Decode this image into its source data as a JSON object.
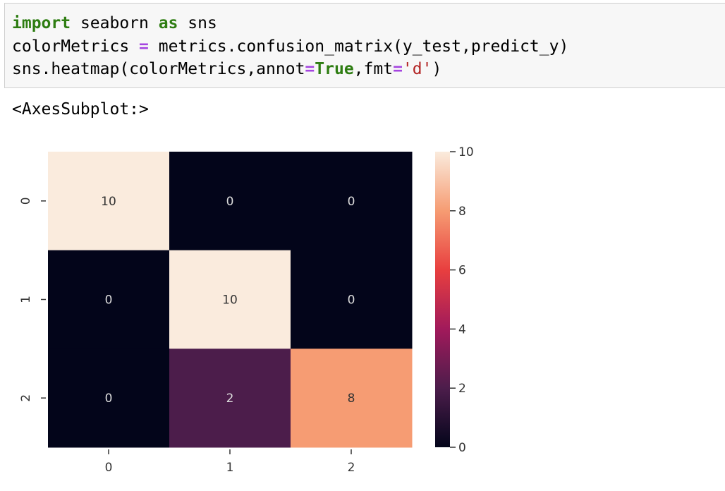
{
  "code_cell": {
    "lines": [
      [
        {
          "t": "import",
          "c": "kw"
        },
        {
          "t": " seaborn ",
          "c": ""
        },
        {
          "t": "as",
          "c": "kw"
        },
        {
          "t": " sns",
          "c": ""
        }
      ],
      [
        {
          "t": "colorMetrics ",
          "c": ""
        },
        {
          "t": "=",
          "c": "op"
        },
        {
          "t": " metrics.confusion_matrix(y_test,predict_y)",
          "c": ""
        }
      ],
      [
        {
          "t": "sns.heatmap(colorMetrics,annot",
          "c": ""
        },
        {
          "t": "=",
          "c": "op"
        },
        {
          "t": "True",
          "c": "kw"
        },
        {
          "t": ",fmt",
          "c": ""
        },
        {
          "t": "=",
          "c": "op"
        },
        {
          "t": "'d'",
          "c": "str"
        },
        {
          "t": ")",
          "c": ""
        }
      ]
    ]
  },
  "output": {
    "text": "<AxesSubplot:>"
  },
  "chart_data": {
    "type": "heatmap",
    "colormap": "rocket",
    "x_ticks": [
      "0",
      "1",
      "2"
    ],
    "y_ticks": [
      "0",
      "1",
      "2"
    ],
    "values": [
      [
        10,
        0,
        0
      ],
      [
        0,
        10,
        0
      ],
      [
        0,
        2,
        8
      ]
    ],
    "vmin": 0,
    "vmax": 10,
    "colorbar_ticks": [
      "0",
      "2",
      "4",
      "6",
      "8",
      "10"
    ],
    "colorbar_stops": [
      "#03051a",
      "#4c1d4b",
      "#a11a5b",
      "#e83f3f",
      "#f69c73",
      "#faebdd"
    ]
  }
}
